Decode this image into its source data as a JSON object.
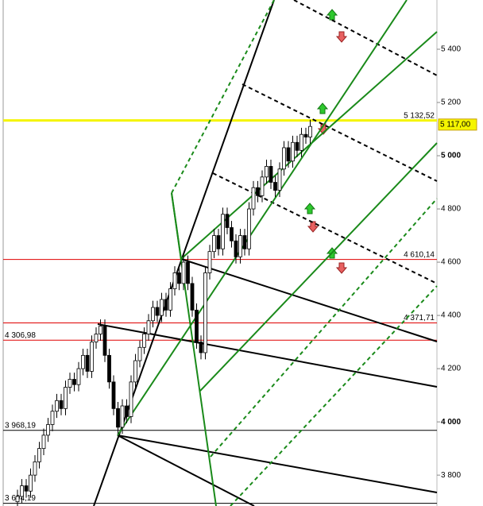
{
  "chart_data": {
    "type": "candlestick",
    "ylim": [
      3684,
      5585
    ],
    "yticks": [
      {
        "value": 5400,
        "label": "5 400"
      },
      {
        "value": 5200,
        "label": "5 200"
      },
      {
        "value": 5000,
        "label": "5 000"
      },
      {
        "value": 4800,
        "label": "4 800"
      },
      {
        "value": 4600,
        "label": "4 600"
      },
      {
        "value": 4400,
        "label": "4 400"
      },
      {
        "value": 4200,
        "label": "4 200"
      },
      {
        "value": 4000,
        "label": "4 000"
      },
      {
        "value": 3800,
        "label": "3 800"
      }
    ],
    "bold_ticks": [
      5000,
      4000
    ],
    "up_color": "#ffffff",
    "down_color": "#000000",
    "candles": [
      [
        3700,
        3745,
        3675,
        3720
      ],
      [
        3720,
        3785,
        3695,
        3760
      ],
      [
        3760,
        3785,
        3715,
        3740
      ],
      [
        3740,
        3825,
        3715,
        3800
      ],
      [
        3800,
        3875,
        3775,
        3850
      ],
      [
        3850,
        3925,
        3825,
        3900
      ],
      [
        3900,
        3975,
        3875,
        3950
      ],
      [
        3950,
        4015,
        3925,
        3990
      ],
      [
        3990,
        4065,
        3965,
        4040
      ],
      [
        4040,
        4105,
        4015,
        4080
      ],
      [
        4080,
        4105,
        4025,
        4050
      ],
      [
        4050,
        4155,
        4025,
        4130
      ],
      [
        4130,
        4185,
        4105,
        4160
      ],
      [
        4160,
        4185,
        4115,
        4140
      ],
      [
        4140,
        4225,
        4115,
        4200
      ],
      [
        4200,
        4275,
        4175,
        4250
      ],
      [
        4250,
        4275,
        4165,
        4190
      ],
      [
        4190,
        4325,
        4165,
        4300
      ],
      [
        4300,
        4355,
        4275,
        4330
      ],
      [
        4330,
        4385,
        4305,
        4360
      ],
      [
        4360,
        4385,
        4225,
        4250
      ],
      [
        4250,
        4275,
        4125,
        4150
      ],
      [
        4150,
        4175,
        4025,
        4050
      ],
      [
        4050,
        4075,
        3955,
        3980
      ],
      [
        3980,
        4085,
        3955,
        4060
      ],
      [
        4060,
        4085,
        3995,
        4020
      ],
      [
        4020,
        4175,
        3995,
        4150
      ],
      [
        4150,
        4255,
        4125,
        4230
      ],
      [
        4230,
        4305,
        4205,
        4280
      ],
      [
        4280,
        4355,
        4255,
        4330
      ],
      [
        4330,
        4405,
        4305,
        4380
      ],
      [
        4380,
        4455,
        4355,
        4430
      ],
      [
        4430,
        4455,
        4375,
        4400
      ],
      [
        4400,
        4485,
        4375,
        4460
      ],
      [
        4460,
        4485,
        4395,
        4420
      ],
      [
        4420,
        4525,
        4395,
        4500
      ],
      [
        4500,
        4585,
        4475,
        4560
      ],
      [
        4560,
        4585,
        4495,
        4520
      ],
      [
        4520,
        4625,
        4495,
        4600
      ],
      [
        4600,
        4625,
        4495,
        4520
      ],
      [
        4520,
        4545,
        4395,
        4420
      ],
      [
        4420,
        4445,
        4275,
        4300
      ],
      [
        4300,
        4325,
        4235,
        4260
      ],
      [
        4260,
        4585,
        4235,
        4560
      ],
      [
        4560,
        4665,
        4535,
        4640
      ],
      [
        4640,
        4725,
        4615,
        4700
      ],
      [
        4700,
        4725,
        4625,
        4650
      ],
      [
        4650,
        4805,
        4625,
        4780
      ],
      [
        4780,
        4805,
        4705,
        4730
      ],
      [
        4730,
        4755,
        4655,
        4680
      ],
      [
        4680,
        4705,
        4595,
        4620
      ],
      [
        4620,
        4725,
        4595,
        4700
      ],
      [
        4700,
        4725,
        4625,
        4650
      ],
      [
        4650,
        4825,
        4625,
        4800
      ],
      [
        4800,
        4905,
        4775,
        4880
      ],
      [
        4880,
        4905,
        4825,
        4850
      ],
      [
        4850,
        4945,
        4825,
        4920
      ],
      [
        4920,
        4985,
        4895,
        4960
      ],
      [
        4960,
        4985,
        4875,
        4900
      ],
      [
        4900,
        4925,
        4845,
        4870
      ],
      [
        4870,
        4975,
        4845,
        4950
      ],
      [
        4950,
        5055,
        4925,
        5030
      ],
      [
        5030,
        5055,
        4955,
        4980
      ],
      [
        4980,
        5075,
        4955,
        5050
      ],
      [
        5050,
        5075,
        4995,
        5020
      ],
      [
        5020,
        5105,
        4995,
        5080
      ],
      [
        5080,
        5105,
        5045,
        5070
      ],
      [
        5070,
        5135,
        5045,
        5110
      ]
    ],
    "levels": [
      {
        "value": 5132.52,
        "label": "5 132,52",
        "color": "#f5f500",
        "side": "right"
      },
      {
        "value": 4610.14,
        "label": "4 610,14",
        "color": "#e00000",
        "side": "right"
      },
      {
        "value": 4371.71,
        "label": "4 371,71",
        "color": "#e00000",
        "side": "right"
      },
      {
        "value": 4306.98,
        "label": "4 306,98",
        "color": "#e00000",
        "side": "left"
      },
      {
        "value": 3968.19,
        "label": "3 968,19",
        "color": "#000000",
        "side": "left"
      },
      {
        "value": 3694.19,
        "label": "3 694,19",
        "color": "#000000",
        "side": "left"
      }
    ],
    "last_price": {
      "value": 5117,
      "label": "5 117,00"
    }
  }
}
